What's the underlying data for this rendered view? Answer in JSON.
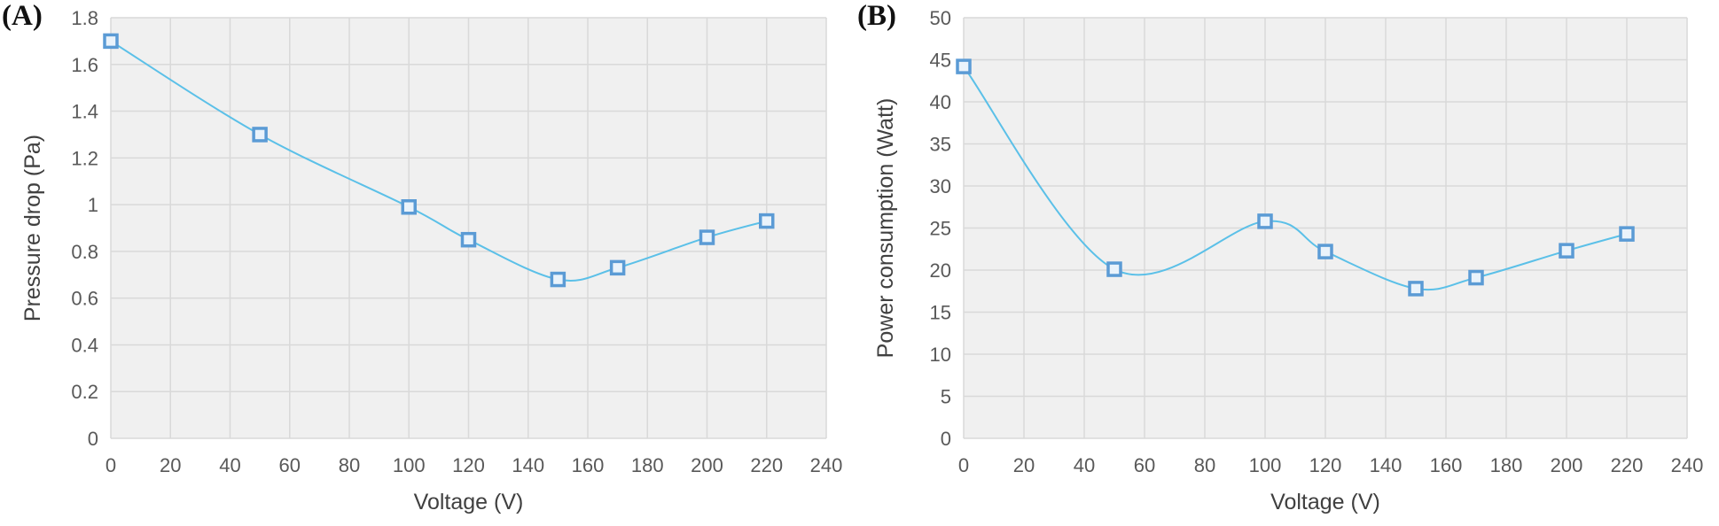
{
  "chart_data": [
    {
      "panel_label": "(A)",
      "type": "line",
      "smooth": true,
      "marker": "square",
      "xlabel": "Voltage (V)",
      "ylabel": "Pressure drop (Pa)",
      "xlim": [
        0,
        240
      ],
      "ylim": [
        0,
        1.8
      ],
      "x_ticks": [
        "0",
        "20",
        "40",
        "60",
        "80",
        "100",
        "120",
        "140",
        "160",
        "180",
        "200",
        "220",
        "240"
      ],
      "y_ticks": [
        "0",
        "0.2",
        "0.4",
        "0.6",
        "0.8",
        "1",
        "1.2",
        "1.4",
        "1.6",
        "1.8"
      ],
      "grid": true,
      "plot_background": "#f0f0f0",
      "gridline_color": "#d9d9d9",
      "line_color": "#5bc0e8",
      "marker_color": "#5b9bd5",
      "series": [
        {
          "x": [
            0,
            50,
            100,
            120,
            150,
            170,
            200,
            220
          ],
          "y": [
            1.7,
            1.3,
            0.99,
            0.85,
            0.68,
            0.73,
            0.86,
            0.93
          ]
        }
      ]
    },
    {
      "panel_label": "(B)",
      "type": "line",
      "smooth": true,
      "marker": "square",
      "xlabel": "Voltage (V)",
      "ylabel": "Power consumption (Watt)",
      "xlim": [
        0,
        240
      ],
      "ylim": [
        0,
        50
      ],
      "x_ticks": [
        "0",
        "20",
        "40",
        "60",
        "80",
        "100",
        "120",
        "140",
        "160",
        "180",
        "200",
        "220",
        "240"
      ],
      "y_ticks": [
        "0",
        "5",
        "10",
        "15",
        "20",
        "25",
        "30",
        "35",
        "40",
        "45",
        "50"
      ],
      "grid": true,
      "plot_background": "#f0f0f0",
      "gridline_color": "#d9d9d9",
      "line_color": "#5bc0e8",
      "marker_color": "#5b9bd5",
      "series": [
        {
          "x": [
            0,
            50,
            100,
            120,
            150,
            170,
            200,
            220
          ],
          "y": [
            44.2,
            20.1,
            25.8,
            22.2,
            17.8,
            19.1,
            22.3,
            24.3
          ]
        }
      ]
    }
  ]
}
